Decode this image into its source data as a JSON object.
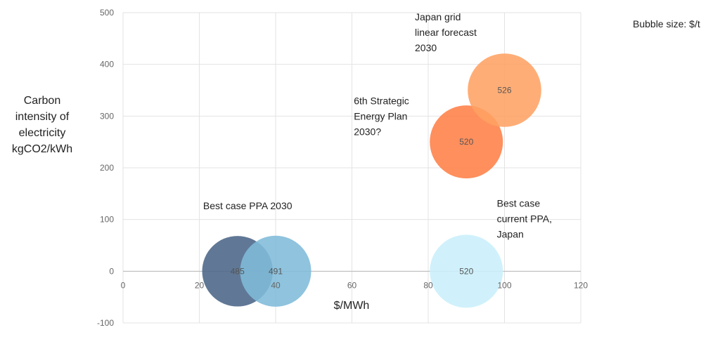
{
  "chart_data": {
    "type": "bubble",
    "xlabel": "$/MWh",
    "ylabel_lines": [
      "Carbon",
      "intensity of",
      "electricity",
      "kgCO2/kWh"
    ],
    "size_note": "Bubble size: $/t",
    "xlim": [
      0,
      120
    ],
    "ylim": [
      -100,
      500
    ],
    "xticks": [
      0,
      20,
      40,
      60,
      80,
      100,
      120
    ],
    "yticks": [
      -100,
      0,
      100,
      200,
      300,
      400,
      500
    ],
    "grid": true,
    "bubbles": [
      {
        "x": 30,
        "y": 0,
        "size": 485,
        "label": "485",
        "color": "#4a6587"
      },
      {
        "x": 40,
        "y": 0,
        "size": 491,
        "label": "491",
        "color": "#7fbbd9"
      },
      {
        "x": 90,
        "y": 0,
        "size": 520,
        "label": "520",
        "color": "#c9effa"
      },
      {
        "x": 90,
        "y": 250,
        "size": 520,
        "label": "520",
        "color": "#ff7f47"
      },
      {
        "x": 100,
        "y": 350,
        "size": 526,
        "label": "526",
        "color": "#ffa263"
      }
    ],
    "annotations": [
      {
        "lines": [
          "Best case PPA 2030"
        ],
        "x": 21,
        "y": 120
      },
      {
        "lines": [
          "Best case",
          "current PPA,",
          "Japan"
        ],
        "x": 98,
        "y": 125
      },
      {
        "lines": [
          "6th Strategic",
          "Energy Plan",
          "2030?"
        ],
        "x": 60.5,
        "y": 323
      },
      {
        "lines": [
          "Japan grid",
          "linear forecast",
          "2030"
        ],
        "x": 76.5,
        "y": 485
      }
    ]
  }
}
